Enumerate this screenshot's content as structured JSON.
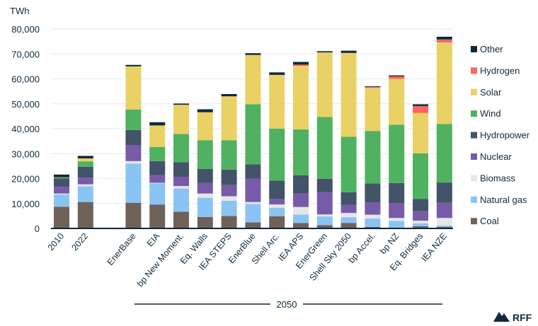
{
  "chart_data": {
    "type": "bar",
    "stacked": true,
    "ylabel": "TWh",
    "ylim": [
      0,
      80000
    ],
    "yticks": [
      0,
      10000,
      20000,
      30000,
      40000,
      50000,
      60000,
      70000,
      80000
    ],
    "ytick_labels": [
      "0",
      "10,000",
      "20,000",
      "30,000",
      "40,000",
      "50,000",
      "60,000",
      "70,000",
      "80,000"
    ],
    "grid": true,
    "legend_placement": "right",
    "group_label": "2050",
    "categories": [
      "2010",
      "2022",
      "EnerBase",
      "EIA",
      "bp New Moment.",
      "Eq. Walls",
      "IEA STEPS",
      "EnerBlue",
      "Shell Arc.",
      "IEA APS",
      "EnerGreen",
      "Shell Sky 2050",
      "bp Accel.",
      "bp NZ",
      "Eq. Bridges",
      "IEA NZE"
    ],
    "series": [
      {
        "name": "Coal",
        "color": "#6f6259",
        "values": [
          8700,
          10600,
          10300,
          9600,
          6700,
          4600,
          5000,
          2400,
          4900,
          2200,
          1300,
          2200,
          600,
          300,
          900,
          600
        ]
      },
      {
        "name": "Natural gas",
        "color": "#8ac4f4",
        "values": [
          4900,
          6300,
          15700,
          8500,
          9300,
          7700,
          6100,
          7400,
          3400,
          3400,
          3500,
          2300,
          3400,
          2700,
          1100,
          600
        ]
      },
      {
        "name": "Biomass",
        "color": "#e6e6e6",
        "values": [
          400,
          800,
          1000,
          200,
          1000,
          1700,
          1800,
          800,
          1300,
          3000,
          800,
          1700,
          1500,
          1200,
          1100,
          3000
        ]
      },
      {
        "name": "Nuclear",
        "color": "#775ba8",
        "values": [
          2700,
          2700,
          6300,
          3100,
          3700,
          4200,
          4500,
          9300,
          2200,
          5400,
          8900,
          3200,
          5000,
          6000,
          3800,
          6100
        ]
      },
      {
        "name": "Hydropower",
        "color": "#435369",
        "values": [
          3400,
          4300,
          6200,
          5600,
          5900,
          5700,
          6200,
          5800,
          7400,
          7300,
          5400,
          5100,
          7500,
          8000,
          4900,
          8100
        ]
      },
      {
        "name": "Wind",
        "color": "#50b160",
        "values": [
          300,
          2200,
          8200,
          5700,
          11300,
          11500,
          11800,
          24100,
          20800,
          18400,
          24800,
          22300,
          21100,
          23400,
          18300,
          23500
        ]
      },
      {
        "name": "Solar",
        "color": "#e9d165",
        "values": [
          100,
          1200,
          17300,
          8600,
          11700,
          11200,
          17600,
          19800,
          21600,
          25500,
          25900,
          33600,
          17300,
          18400,
          16200,
          32700
        ]
      },
      {
        "name": "Hydrogen",
        "color": "#fe6461",
        "values": [
          0,
          0,
          0,
          0,
          0,
          0,
          0,
          0,
          0,
          500,
          0,
          0,
          300,
          1000,
          2800,
          1200
        ]
      },
      {
        "name": "Other",
        "color": "#0f2a3c",
        "values": [
          1100,
          1000,
          600,
          1300,
          500,
          1200,
          900,
          700,
          1000,
          1100,
          500,
          900,
          300,
          400,
          700,
          1100
        ]
      }
    ]
  },
  "logo": {
    "text": "RFF"
  }
}
